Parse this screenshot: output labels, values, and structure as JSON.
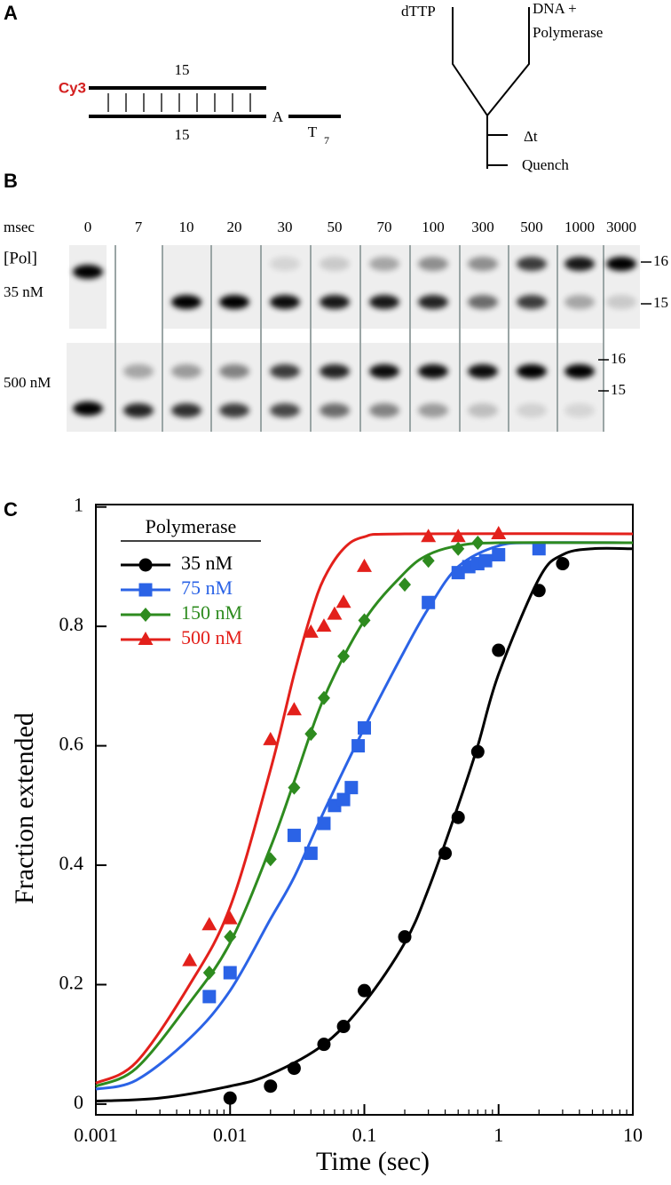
{
  "panel_a": {
    "label": "A",
    "cy3": "Cy3",
    "top_len": "15",
    "bottom_len": "15",
    "base": "A",
    "template": "T",
    "template_sub": "7",
    "mix_left": "dTTP",
    "mix_right_1": "DNA +",
    "mix_right_2": "Polymerase",
    "delay": "Δt",
    "quench": "Quench"
  },
  "panel_b": {
    "label": "B",
    "time_unit": "msec",
    "lanes": [
      "0",
      "7",
      "10",
      "20",
      "30",
      "50",
      "70",
      "100",
      "300",
      "500",
      "1000",
      "3000"
    ],
    "pol_header": "[Pol]",
    "row_1": "35 nM",
    "row_2": "500 nM",
    "row_1_upper": "16",
    "row_1_lower": "15",
    "row_2_upper": "16",
    "row_2_lower": "15"
  },
  "panel_c": {
    "label": "C"
  },
  "chart_data": {
    "type": "scatter",
    "x_label": "Time (sec)",
    "y_label": "Fraction extended",
    "legend_title": "Polymerase",
    "x_scale": "log",
    "xlim": [
      0.001,
      10
    ],
    "xticks": [
      0.001,
      0.01,
      0.1,
      1,
      10
    ],
    "ylim": [
      -0.018,
      1.004
    ],
    "yticks": [
      0,
      0.2,
      0.4,
      0.6,
      0.8,
      1
    ],
    "legend": "upper left",
    "series": [
      {
        "name": "35 nM",
        "color": "#000000",
        "marker": "circle",
        "x": [
          0.01,
          0.02,
          0.03,
          0.05,
          0.07,
          0.1,
          0.2,
          0.4,
          0.5,
          0.7,
          1,
          2,
          3
        ],
        "values": [
          0.01,
          0.03,
          0.06,
          0.1,
          0.13,
          0.19,
          0.28,
          0.42,
          0.48,
          0.59,
          0.76,
          0.86,
          0.905
        ],
        "fit_x": [
          0.001,
          0.003,
          0.01,
          0.02,
          0.05,
          0.1,
          0.2,
          0.3,
          0.5,
          0.7,
          1,
          2,
          3,
          5,
          10
        ],
        "fit_values": [
          0.005,
          0.01,
          0.03,
          0.05,
          0.1,
          0.17,
          0.27,
          0.36,
          0.5,
          0.6,
          0.72,
          0.88,
          0.92,
          0.93,
          0.93
        ]
      },
      {
        "name": "75 nM",
        "color": "#2b63e6",
        "marker": "square",
        "x": [
          0.007,
          0.01,
          0.03,
          0.04,
          0.05,
          0.06,
          0.07,
          0.08,
          0.09,
          0.1,
          0.3,
          0.5,
          0.6,
          0.7,
          0.8,
          1,
          2
        ],
        "values": [
          0.18,
          0.22,
          0.45,
          0.42,
          0.47,
          0.5,
          0.51,
          0.53,
          0.6,
          0.63,
          0.84,
          0.89,
          0.9,
          0.905,
          0.91,
          0.92,
          0.93
        ],
        "fit_x": [
          0.001,
          0.002,
          0.005,
          0.01,
          0.02,
          0.03,
          0.05,
          0.1,
          0.2,
          0.3,
          0.5,
          1,
          2,
          10
        ],
        "fit_values": [
          0.025,
          0.04,
          0.11,
          0.19,
          0.31,
          0.38,
          0.49,
          0.63,
          0.76,
          0.83,
          0.9,
          0.935,
          0.94,
          0.94
        ]
      },
      {
        "name": "150 nM",
        "color": "#2e8b1f",
        "marker": "diamond",
        "x": [
          0.007,
          0.01,
          0.02,
          0.03,
          0.04,
          0.05,
          0.07,
          0.1,
          0.2,
          0.3,
          0.5,
          0.7
        ],
        "values": [
          0.22,
          0.28,
          0.41,
          0.53,
          0.62,
          0.68,
          0.75,
          0.81,
          0.87,
          0.91,
          0.93,
          0.94
        ],
        "fit_x": [
          0.001,
          0.002,
          0.005,
          0.01,
          0.02,
          0.03,
          0.05,
          0.1,
          0.2,
          0.3,
          0.5,
          1,
          10
        ],
        "fit_values": [
          0.03,
          0.06,
          0.17,
          0.27,
          0.43,
          0.54,
          0.68,
          0.81,
          0.89,
          0.92,
          0.935,
          0.94,
          0.94
        ]
      },
      {
        "name": "500 nM",
        "color": "#e3201b",
        "marker": "triangle",
        "x": [
          0.005,
          0.007,
          0.01,
          0.02,
          0.03,
          0.04,
          0.05,
          0.06,
          0.07,
          0.1,
          0.3,
          0.5,
          1
        ],
        "values": [
          0.24,
          0.3,
          0.31,
          0.61,
          0.66,
          0.79,
          0.8,
          0.82,
          0.84,
          0.9,
          0.95,
          0.95,
          0.955
        ],
        "fit_x": [
          0.001,
          0.002,
          0.005,
          0.01,
          0.02,
          0.03,
          0.04,
          0.05,
          0.07,
          0.1,
          0.2,
          10
        ],
        "fit_values": [
          0.035,
          0.07,
          0.2,
          0.33,
          0.56,
          0.72,
          0.82,
          0.88,
          0.93,
          0.95,
          0.955,
          0.955
        ]
      }
    ]
  }
}
